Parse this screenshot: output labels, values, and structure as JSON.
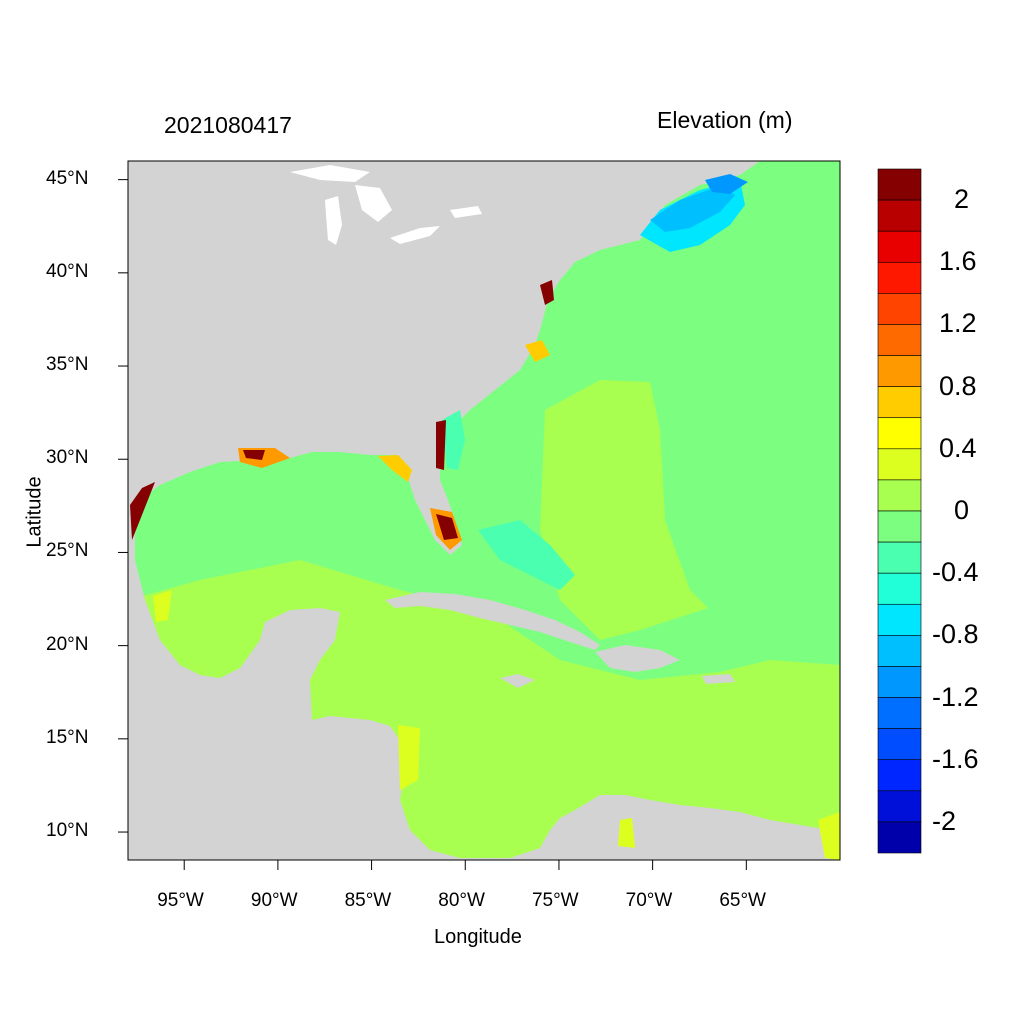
{
  "header": {
    "timestamp": "2021080417",
    "variable_title": "Elevation (m)"
  },
  "axes": {
    "xlabel": "Longitude",
    "ylabel": "Latitude",
    "lon_range": [
      -98,
      -60
    ],
    "lat_range": [
      8.5,
      46
    ],
    "x_ticks": [
      "95°W",
      "90°W",
      "85°W",
      "80°W",
      "75°W",
      "70°W",
      "65°W"
    ],
    "x_tick_values": [
      -95,
      -90,
      -85,
      -80,
      -75,
      -70,
      -65
    ],
    "y_ticks": [
      "45°N",
      "40°N",
      "35°N",
      "30°N",
      "25°N",
      "20°N",
      "15°N",
      "10°N"
    ],
    "y_tick_values": [
      45,
      40,
      35,
      30,
      25,
      20,
      15,
      10
    ]
  },
  "colorbar": {
    "orientation": "vertical",
    "placement": "right",
    "levels": [
      -2.2,
      -2.0,
      -1.8,
      -1.6,
      -1.4,
      -1.2,
      -1.0,
      -0.8,
      -0.6,
      -0.4,
      -0.2,
      0.0,
      0.2,
      0.4,
      0.6,
      0.8,
      1.0,
      1.2,
      1.4,
      1.6,
      1.8,
      2.0,
      2.2
    ],
    "colors": [
      "#0000aa",
      "#0010d8",
      "#0026ff",
      "#004cff",
      "#006eff",
      "#0098ff",
      "#00bfff",
      "#00e6ff",
      "#20ffd8",
      "#4affb0",
      "#7cff80",
      "#a8ff50",
      "#ddff20",
      "#ffff00",
      "#ffcc00",
      "#ff9900",
      "#ff6a00",
      "#ff4400",
      "#ff1800",
      "#e80000",
      "#b80000",
      "#850000"
    ],
    "labels": [
      "2",
      "1.6",
      "1.2",
      "0.8",
      "0.4",
      "0",
      "-0.4",
      "-0.8",
      "-1.2",
      "-1.6",
      "-2"
    ],
    "label_values": [
      2.0,
      1.6,
      1.2,
      0.8,
      0.4,
      0.0,
      -0.4,
      -0.8,
      -1.2,
      -1.6,
      -2.0
    ]
  },
  "map_colors": {
    "land": "#d3d3d3",
    "atlantic": "#7cff80",
    "gulf_caribbean": "#a8ff50",
    "lakes": "#ffffff"
  }
}
